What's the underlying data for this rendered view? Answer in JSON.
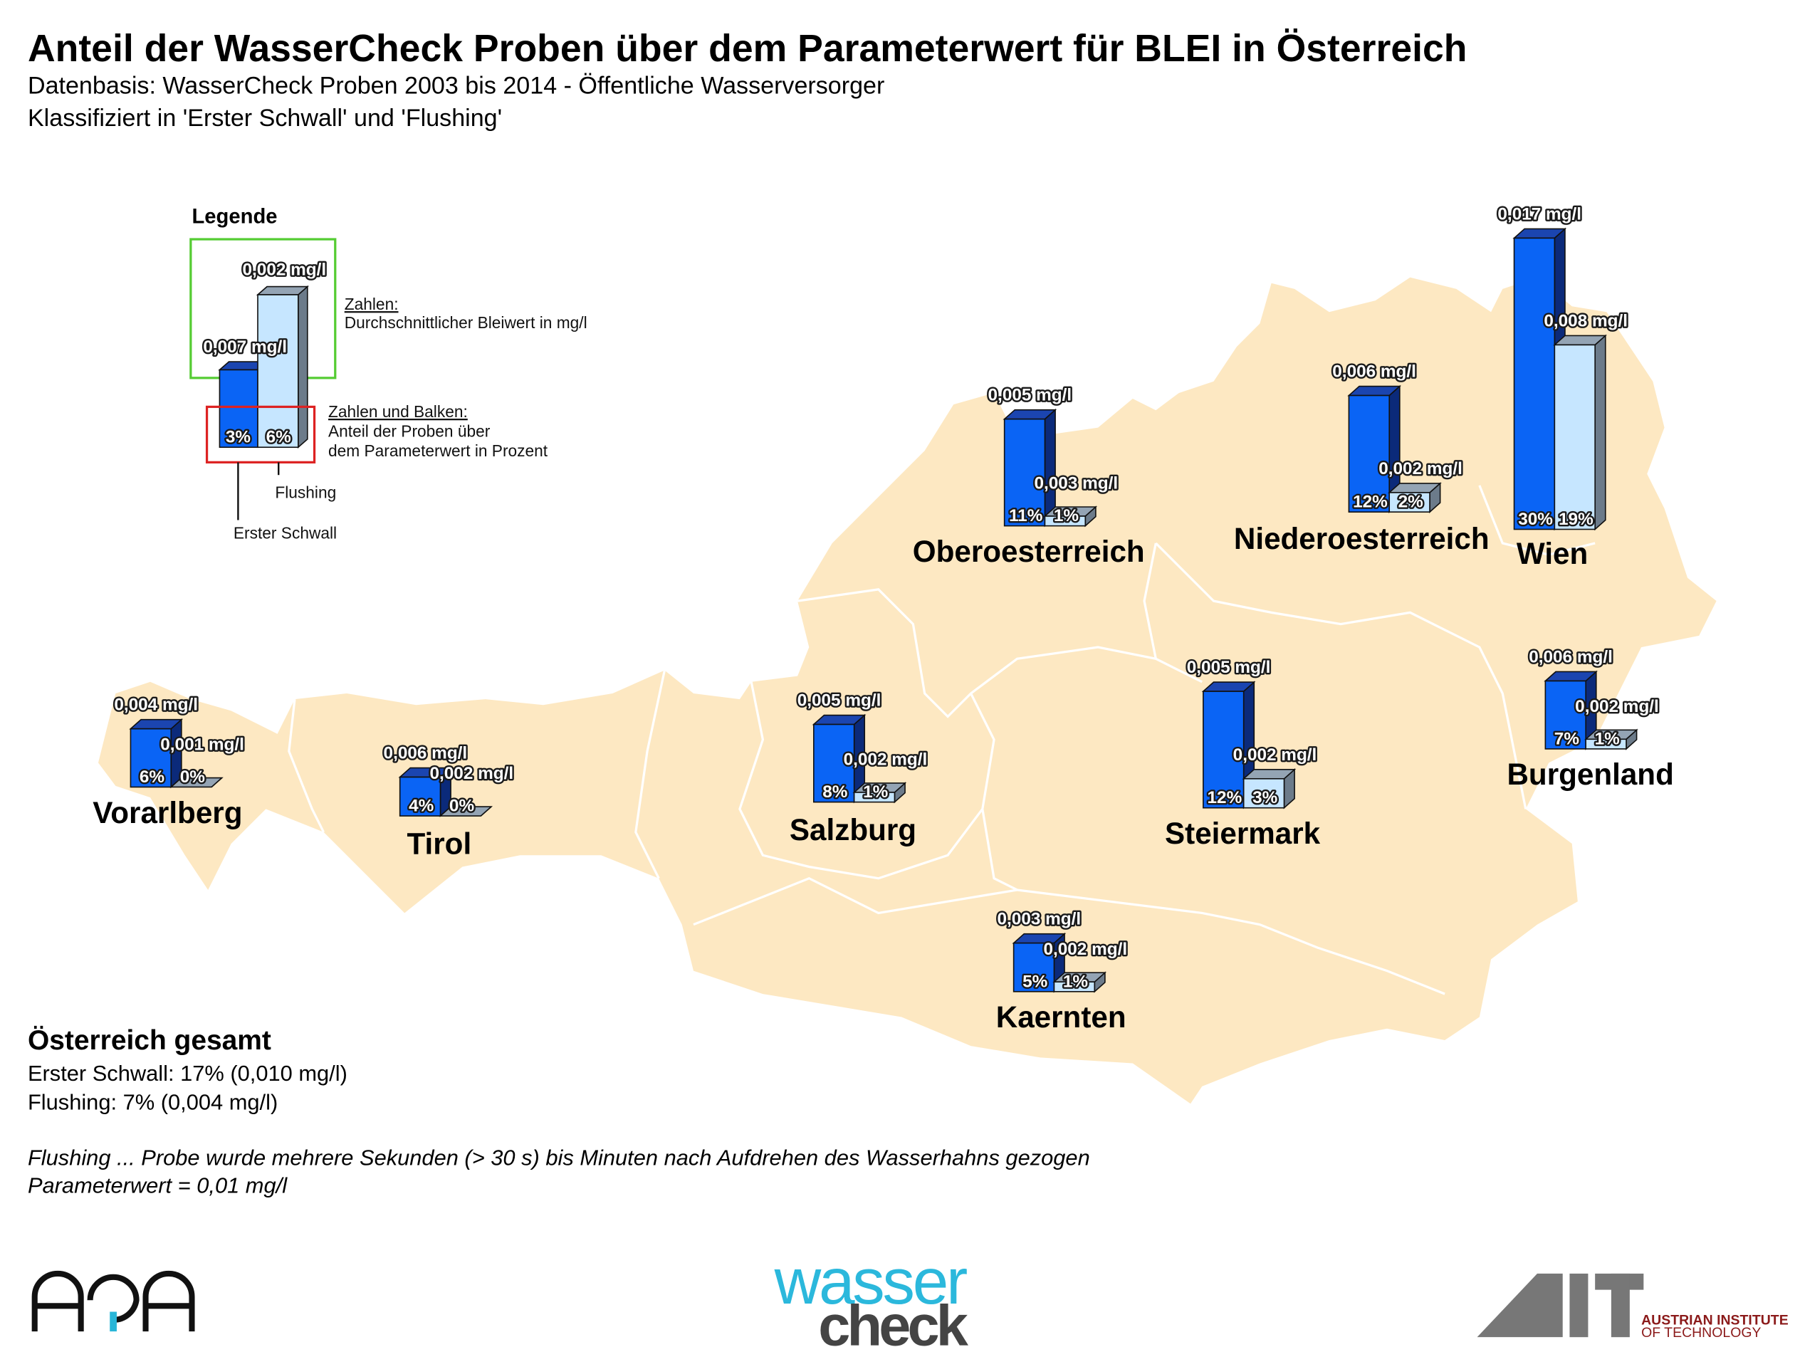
{
  "chart_data": {
    "type": "bar",
    "title": "Anteil der WasserCheck Proben über dem Parameterwert für BLEI in Österreich",
    "subtitle": [
      "Datenbasis: WasserCheck Proben 2003 bis 2014 - Öffentliche Wasserversorger",
      "Klassifiziert in 'Erster Schwall' und 'Flushing'"
    ],
    "categories": [
      "Vorarlberg",
      "Tirol",
      "Salzburg",
      "Oberoesterreich",
      "Niederoesterreich",
      "Wien",
      "Steiermark",
      "Burgenland",
      "Kaernten"
    ],
    "series": [
      {
        "name": "Erster Schwall",
        "color": "#0a64f5",
        "side_color": "#0b2a7a",
        "top_color": "#1b45b0",
        "values": [
          6,
          4,
          8,
          11,
          12,
          30,
          12,
          7,
          5
        ],
        "value_labels": [
          "6%",
          "4%",
          "8%",
          "11%",
          "12%",
          "30%",
          "12%",
          "7%",
          "5%"
        ],
        "concentration_labels": [
          "0,004 mg/l",
          "0,006 mg/l",
          "0,005 mg/l",
          "0,005 mg/l",
          "0,006 mg/l",
          "0,017 mg/l",
          "0,005 mg/l",
          "0,006 mg/l",
          "0,003 mg/l"
        ]
      },
      {
        "name": "Flushing",
        "color": "#c6e6ff",
        "side_color": "#6c7b8a",
        "top_color": "#94a4b4",
        "values": [
          0,
          0,
          1,
          1,
          2,
          19,
          3,
          1,
          1
        ],
        "value_labels": [
          "0%",
          "0%",
          "1%",
          "1%",
          "2%",
          "19%",
          "3%",
          "1%",
          "1%"
        ],
        "concentration_labels": [
          "0,001 mg/l",
          "0,002 mg/l",
          "0,002 mg/l",
          "0,003 mg/l",
          "0,002 mg/l",
          "0,008 mg/l",
          "0,002 mg/l",
          "0,002 mg/l",
          "0,002 mg/l"
        ]
      }
    ]
  },
  "legend": {
    "title": "Legende",
    "example_concentrations": [
      "0,007 mg/l",
      "0,002 mg/l"
    ],
    "example_percentages": [
      "3%",
      "6%"
    ],
    "concentration_note": [
      "Zahlen:",
      "Durchschnittlicher Bleiwert in mg/l"
    ],
    "bar_note": [
      "Zahlen und Balken:",
      "Anteil der Proben über",
      "dem Parameterwert in Prozent"
    ]
  },
  "summary": {
    "title": "Österreich gesamt",
    "lines": [
      "Erster Schwall: 17% (0,010 mg/l)",
      "Flushing: 7% (0,004 mg/l)"
    ]
  },
  "notes": [
    "Flushing ... Probe wurde mehrere Sekunden (> 30 s) bis Minuten nach Aufdrehen des Wasserhahns gezogen",
    "Parameterwert = 0,01 mg/l"
  ],
  "logos": {
    "wasser": "wasser",
    "check": "check",
    "institute": [
      "AUSTRIAN INSTITUTE",
      "OF TECHNOLOGY"
    ]
  }
}
